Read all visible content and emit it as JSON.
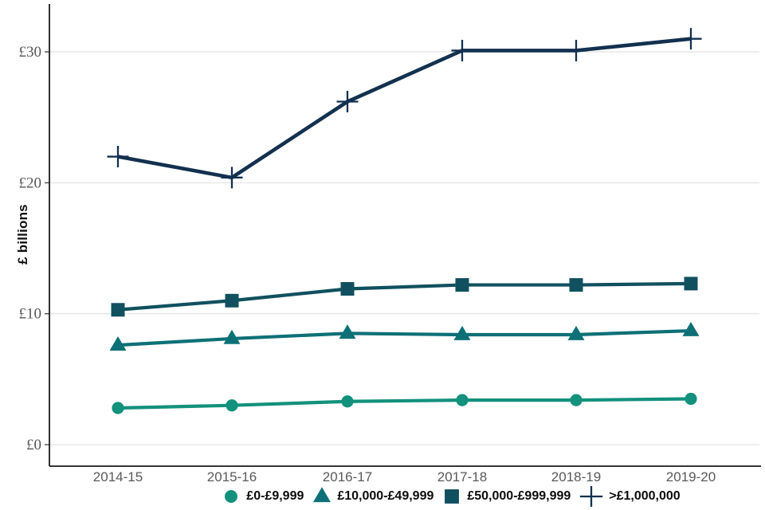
{
  "chart_data": {
    "type": "line",
    "title": "",
    "ylabel": "£ billions",
    "xlabel": "",
    "categories": [
      "2014-15",
      "2015-16",
      "2016-17",
      "2017-18",
      "2018-19",
      "2019-20"
    ],
    "series": [
      {
        "name": "£0-£9,999",
        "marker": "circle",
        "color": "#13917C",
        "values": [
          2.8,
          3.0,
          3.3,
          3.4,
          3.4,
          3.5
        ]
      },
      {
        "name": "£10,000-£49,999",
        "marker": "triangle",
        "color": "#0E7077",
        "values": [
          7.6,
          8.1,
          8.5,
          8.4,
          8.4,
          8.7
        ]
      },
      {
        "name": "£50,000-£999,999",
        "marker": "square",
        "color": "#11505F",
        "values": [
          10.3,
          11.0,
          11.9,
          12.2,
          12.2,
          12.3
        ]
      },
      {
        "name": ">£1,000,000",
        "marker": "plus",
        "color": "#13304F",
        "values": [
          22.0,
          20.4,
          26.2,
          30.1,
          30.1,
          31.0
        ]
      }
    ],
    "yticks": [
      {
        "value": 0,
        "label": "£0"
      },
      {
        "value": 10,
        "label": "£10"
      },
      {
        "value": 20,
        "label": "£20"
      },
      {
        "value": 30,
        "label": "£30"
      }
    ],
    "ylim": [
      -1.6,
      33.7
    ],
    "grid": "horizontal-major-only",
    "legend_position": "bottom"
  },
  "colors": {
    "axis_line": "#1a1a1a",
    "gridline": "#e9e9e9",
    "y_tick_label": "#555555",
    "x_tick_label": "#595959",
    "axis_title": "#111111",
    "legend_text": "#0d0d0d",
    "background": "#ffffff"
  }
}
